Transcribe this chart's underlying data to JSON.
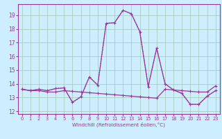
{
  "xlabel": "Windchill (Refroidissement éolien,°C)",
  "background_color": "#cceeff",
  "grid_color": "#aaccbb",
  "line_color": "#993399",
  "x_ticks": [
    0,
    1,
    2,
    3,
    4,
    5,
    6,
    7,
    8,
    9,
    10,
    11,
    12,
    13,
    14,
    15,
    16,
    17,
    18,
    19,
    20,
    21,
    22,
    23
  ],
  "y_ticks": [
    12,
    13,
    14,
    15,
    16,
    17,
    18,
    19
  ],
  "xlim": [
    -0.5,
    23.5
  ],
  "ylim": [
    11.8,
    19.8
  ],
  "series_dotted": {
    "x": [
      0,
      1,
      2,
      3,
      4,
      5,
      6,
      7,
      8,
      9,
      10,
      11,
      12,
      13,
      14,
      15,
      16,
      17,
      18,
      19,
      20,
      21,
      22,
      23
    ],
    "y": [
      13.6,
      13.5,
      13.6,
      13.5,
      13.65,
      13.7,
      12.65,
      13.05,
      14.5,
      13.9,
      18.4,
      18.45,
      19.35,
      19.1,
      17.8,
      13.8,
      16.6,
      14.0,
      13.55,
      13.3,
      12.5,
      12.5,
      13.1,
      13.5
    ]
  },
  "series_main": {
    "x": [
      0,
      1,
      2,
      3,
      4,
      5,
      6,
      7,
      8,
      9,
      10,
      11,
      12,
      13,
      14,
      15,
      16,
      17,
      18,
      19,
      20,
      21,
      22,
      23
    ],
    "y": [
      13.6,
      13.5,
      13.6,
      13.5,
      13.65,
      13.7,
      12.65,
      13.05,
      14.5,
      13.9,
      18.4,
      18.45,
      19.35,
      19.1,
      17.8,
      13.8,
      16.6,
      14.0,
      13.55,
      13.3,
      12.5,
      12.5,
      13.1,
      13.5
    ]
  },
  "series_trend": {
    "x": [
      0,
      1,
      2,
      3,
      4,
      5,
      6,
      7,
      8,
      9,
      10,
      11,
      12,
      13,
      14,
      15,
      16,
      17,
      18,
      19,
      20,
      21,
      22,
      23
    ],
    "y": [
      13.6,
      13.5,
      13.5,
      13.4,
      13.4,
      13.5,
      13.45,
      13.4,
      13.35,
      13.3,
      13.25,
      13.2,
      13.15,
      13.1,
      13.05,
      13.0,
      12.95,
      13.6,
      13.55,
      13.5,
      13.45,
      13.4,
      13.4,
      13.85
    ]
  }
}
